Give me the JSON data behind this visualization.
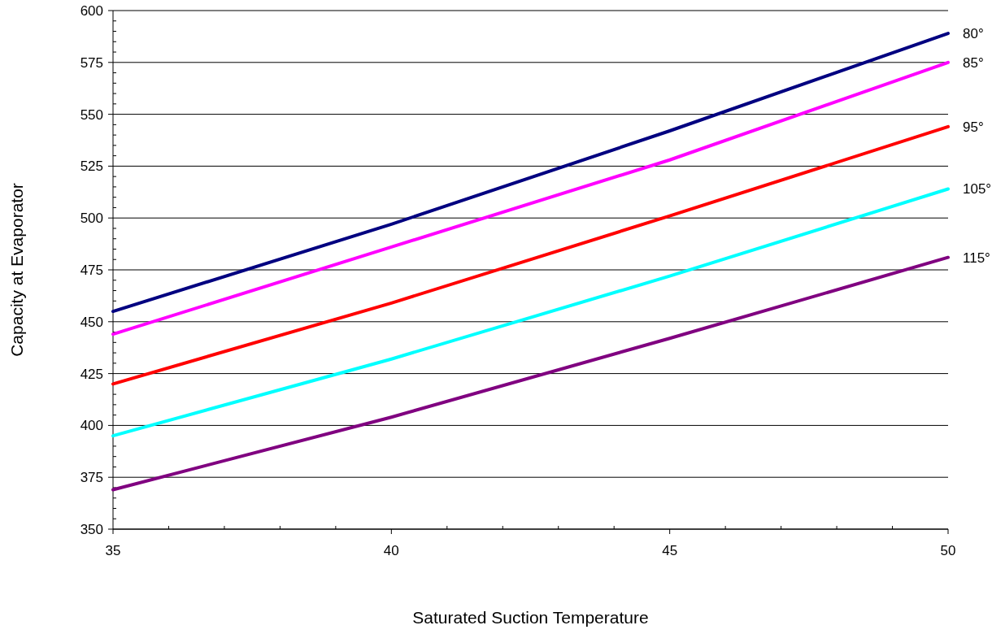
{
  "chart_data": {
    "type": "line",
    "xlabel": "Saturated Suction Temperature",
    "ylabel": "Capacity at Evaporator",
    "x": [
      35,
      40,
      45,
      50
    ],
    "series": [
      {
        "name": "80°",
        "color": "#000080",
        "values": [
          455,
          497,
          542,
          589
        ]
      },
      {
        "name": "85°",
        "color": "#ff00ff",
        "values": [
          444,
          486,
          528,
          575
        ]
      },
      {
        "name": "95°",
        "color": "#ff0000",
        "values": [
          420,
          459,
          501,
          544
        ]
      },
      {
        "name": "105°",
        "color": "#00ffff",
        "values": [
          395,
          432,
          472,
          514
        ]
      },
      {
        "name": "115°",
        "color": "#800080",
        "values": [
          369,
          404,
          442,
          481
        ]
      }
    ],
    "xlim": [
      35,
      50
    ],
    "xticks": [
      35,
      {
        "value": 36,
        "label": null
      },
      {
        "value": 37,
        "label": null
      },
      {
        "value": 38,
        "label": null
      },
      {
        "value": 39,
        "label": null
      },
      40,
      {
        "value": 41,
        "label": null
      },
      {
        "value": 42,
        "label": null
      },
      {
        "value": 43,
        "label": null
      },
      {
        "value": 44,
        "label": null
      },
      45,
      {
        "value": 46,
        "label": null
      },
      {
        "value": 47,
        "label": null
      },
      {
        "value": 48,
        "label": null
      },
      {
        "value": 49,
        "label": null
      },
      50
    ],
    "ylim": [
      350,
      600
    ],
    "yticks": [
      350,
      {
        "value": 355,
        "label": null
      },
      {
        "value": 360,
        "label": null
      },
      {
        "value": 365,
        "label": null
      },
      {
        "value": 370,
        "label": null
      },
      375,
      {
        "value": 380,
        "label": null
      },
      {
        "value": 385,
        "label": null
      },
      {
        "value": 390,
        "label": null
      },
      {
        "value": 395,
        "label": null
      },
      400,
      {
        "value": 405,
        "label": null
      },
      {
        "value": 410,
        "label": null
      },
      {
        "value": 415,
        "label": null
      },
      {
        "value": 420,
        "label": null
      },
      425,
      {
        "value": 430,
        "label": null
      },
      {
        "value": 435,
        "label": null
      },
      {
        "value": 440,
        "label": null
      },
      {
        "value": 445,
        "label": null
      },
      450,
      {
        "value": 455,
        "label": null
      },
      {
        "value": 460,
        "label": null
      },
      {
        "value": 465,
        "label": null
      },
      {
        "value": 470,
        "label": null
      },
      475,
      {
        "value": 480,
        "label": null
      },
      {
        "value": 485,
        "label": null
      },
      {
        "value": 490,
        "label": null
      },
      {
        "value": 495,
        "label": null
      },
      500,
      {
        "value": 505,
        "label": null
      },
      {
        "value": 510,
        "label": null
      },
      {
        "value": 515,
        "label": null
      },
      {
        "value": 520,
        "label": null
      },
      525,
      {
        "value": 530,
        "label": null
      },
      {
        "value": 535,
        "label": null
      },
      {
        "value": 540,
        "label": null
      },
      {
        "value": 545,
        "label": null
      },
      550,
      {
        "value": 555,
        "label": null
      },
      {
        "value": 560,
        "label": null
      },
      {
        "value": 565,
        "label": null
      },
      {
        "value": 570,
        "label": null
      },
      575,
      {
        "value": 580,
        "label": null
      },
      {
        "value": 585,
        "label": null
      },
      {
        "value": 590,
        "label": null
      },
      {
        "value": 595,
        "label": null
      },
      600
    ],
    "grid": "y",
    "marker": "none",
    "line_style": "solid"
  }
}
